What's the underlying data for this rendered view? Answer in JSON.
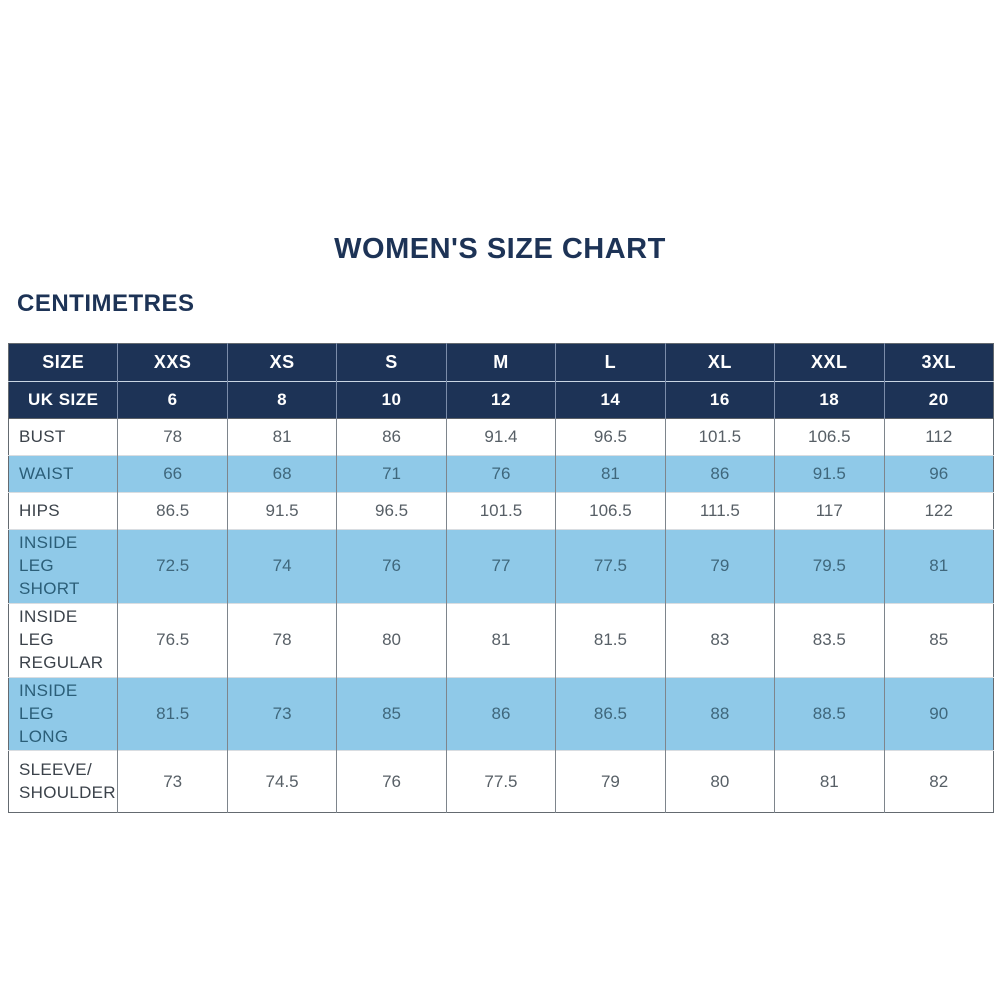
{
  "page": {
    "title": "WOMEN'S SIZE CHART",
    "unit_heading": "CENTIMETRES"
  },
  "colors": {
    "header_navy": "#1d3356",
    "zebra_light_blue": "#8fc9e8",
    "title_navy": "#1d3356",
    "body_text_gray": "#575f66"
  },
  "chart_data": {
    "type": "table",
    "title": "WOMEN'S SIZE CHART",
    "units": "CENTIMETRES",
    "header": [
      "SIZE",
      "XXS",
      "XS",
      "S",
      "M",
      "L",
      "XL",
      "XXL",
      "3XL"
    ],
    "rows": [
      {
        "label": "UK SIZE",
        "values": [
          "6",
          "8",
          "10",
          "12",
          "14",
          "16",
          "18",
          "20"
        ]
      },
      {
        "label": "BUST",
        "values": [
          "78",
          "81",
          "86",
          "91.4",
          "96.5",
          "101.5",
          "106.5",
          "112"
        ]
      },
      {
        "label": "WAIST",
        "values": [
          "66",
          "68",
          "71",
          "76",
          "81",
          "86",
          "91.5",
          "96"
        ]
      },
      {
        "label": "HIPS",
        "values": [
          "86.5",
          "91.5",
          "96.5",
          "101.5",
          "106.5",
          "111.5",
          "117",
          "122"
        ]
      },
      {
        "label": "INSIDE LEG\nSHORT",
        "values": [
          "72.5",
          "74",
          "76",
          "77",
          "77.5",
          "79",
          "79.5",
          "81"
        ]
      },
      {
        "label": "INSIDE LEG\nREGULAR",
        "values": [
          "76.5",
          "78",
          "80",
          "81",
          "81.5",
          "83",
          "83.5",
          "85"
        ]
      },
      {
        "label": "INSIDE LEG\nLONG",
        "values": [
          "81.5",
          "73",
          "85",
          "86",
          "86.5",
          "88",
          "88.5",
          "90"
        ]
      },
      {
        "label": "SLEEVE/\nSHOULDER",
        "values": [
          "73",
          "74.5",
          "76",
          "77.5",
          "79",
          "80",
          "81",
          "82"
        ]
      }
    ]
  }
}
